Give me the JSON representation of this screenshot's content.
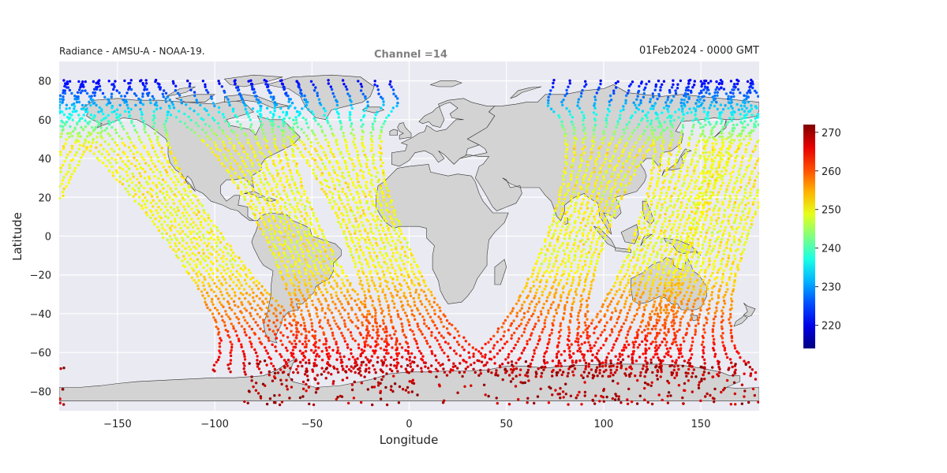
{
  "header": {
    "left_title": "Radiance - AMSU-A - NOAA-19.",
    "center_title": "Channel =14",
    "right_title": "01Feb2024 - 0000 GMT"
  },
  "colors": {
    "plot_background": "#eaeaf2",
    "land": "#d3d3d3",
    "coast": "#333333",
    "grid": "#ffffff"
  },
  "chart_data": {
    "type": "scatter",
    "projection": "PlateCarree",
    "xlabel": "Longitude",
    "ylabel": "Latitude",
    "xlim": [
      -180,
      180
    ],
    "ylim": [
      -90,
      90
    ],
    "xticks": [
      -150,
      -100,
      -50,
      0,
      50,
      100,
      150
    ],
    "yticks": [
      -80,
      -60,
      -40,
      -20,
      0,
      20,
      40,
      60,
      80
    ],
    "grid": true,
    "colormap": "jet",
    "colorbar": {
      "min": 214,
      "max": 272,
      "ticks": [
        220,
        230,
        240,
        250,
        260,
        270
      ],
      "placement": "right"
    },
    "swath_half_width_deg": 15,
    "swaths": [
      {
        "lat_start": 80,
        "lat_end": -70,
        "lon_start": -50,
        "lon_end": 10
      },
      {
        "lat_start": 80,
        "lat_end": -70,
        "lon_start": -98,
        "lon_end": -25
      },
      {
        "lat_start": 80,
        "lat_end": -70,
        "lon_start": -170,
        "lon_end": -60
      },
      {
        "lat_start": -72,
        "lat_end": 80,
        "lon_start": 60,
        "lon_end": 115
      },
      {
        "lat_start": -72,
        "lat_end": 80,
        "lon_start": 105,
        "lon_end": 160
      },
      {
        "lat_start": -72,
        "lat_end": 80,
        "lon_start": 135,
        "lon_end": 185
      }
    ],
    "polar_cap_lat_range": [
      -87,
      -64
    ],
    "polar_cap_value_range": [
      266,
      272
    ],
    "equator_value": 250,
    "south_value": 268
  }
}
